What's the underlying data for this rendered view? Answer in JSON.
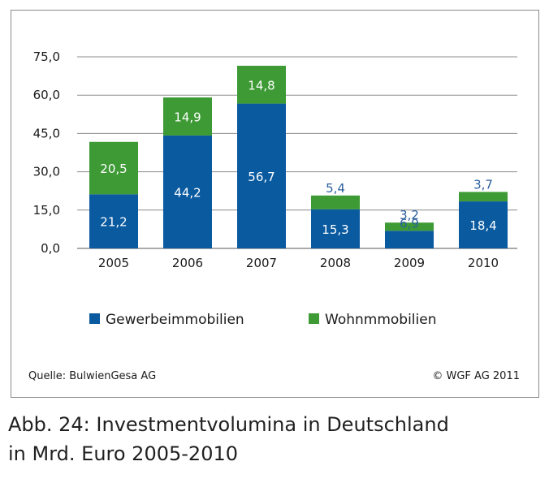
{
  "chart_data": {
    "type": "bar",
    "stacked": true,
    "categories": [
      "2005",
      "2006",
      "2007",
      "2008",
      "2009",
      "2010"
    ],
    "series": [
      {
        "name": "Gewerbeimmobilien",
        "color": "#0a5aa0",
        "values": [
          21.2,
          44.2,
          56.7,
          15.3,
          6.9,
          18.4
        ],
        "labels": [
          "21,2",
          "44,2",
          "56,7",
          "15,3",
          "6,9",
          "18,4"
        ]
      },
      {
        "name": "Wohnmmobilien",
        "color": "#3d9a34",
        "values": [
          20.5,
          14.9,
          14.8,
          5.4,
          3.2,
          3.7
        ],
        "labels": [
          "20,5",
          "14,9",
          "14,8",
          "5,4",
          "3,2",
          "3,7"
        ]
      }
    ],
    "yticks": [
      0,
      15,
      30,
      45,
      60,
      75
    ],
    "ytick_labels": [
      "0,0",
      "15,0",
      "30,0",
      "45,0",
      "60,0",
      "75,0"
    ],
    "ylim": [
      0,
      75
    ],
    "grid": true,
    "legend": "bottom"
  },
  "source": "Quelle: BulwienGesa AG",
  "copyright": "© WGF AG 2011",
  "caption": {
    "line1": "Abb. 24: Investmentvolumina in Deutschland",
    "line2": "in Mrd. Euro 2005-2010"
  }
}
